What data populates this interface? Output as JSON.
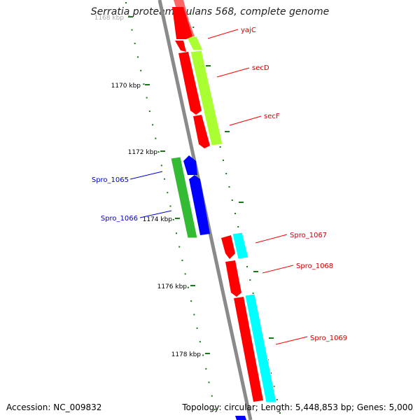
{
  "title": "Serratia proteamaculans 568, complete genome",
  "accession": "Accession: NC_009832",
  "topology": "Topology: circular; Length: 5,448,853 bp; Genes: 5,000",
  "ticks": [
    "1168 kbp",
    "1170 kbp",
    "1172 kbp",
    "1174 kbp",
    "1176 kbp",
    "1178 kbp"
  ],
  "genes": [
    {
      "label": "yajC",
      "color": "#ff0000",
      "strand": "minus"
    },
    {
      "label": "secD",
      "color": "#ff0000",
      "strand": "minus"
    },
    {
      "label": "secF",
      "color": "#ff0000",
      "strand": "minus"
    },
    {
      "label": "Spro_1065",
      "color": "#0000cc",
      "strand": "minus"
    },
    {
      "label": "Spro_1066",
      "color": "#0000cc",
      "strand": "minus"
    },
    {
      "label": "Spro_1067",
      "color": "#ff0000",
      "strand": "minus"
    },
    {
      "label": "Spro_1068",
      "color": "#ff0000",
      "strand": "minus"
    },
    {
      "label": "Spro_1069",
      "color": "#ff0000",
      "strand": "minus"
    }
  ],
  "colors": {
    "backbone": "#8a8a8a",
    "tick": "#1a7a1a",
    "gene_forward": "#ff0000",
    "gene_reverse": "#0000ff",
    "cds_lime": "#aaff33",
    "cds_green": "#33aa33",
    "cds_cyan": "#00ffff"
  }
}
